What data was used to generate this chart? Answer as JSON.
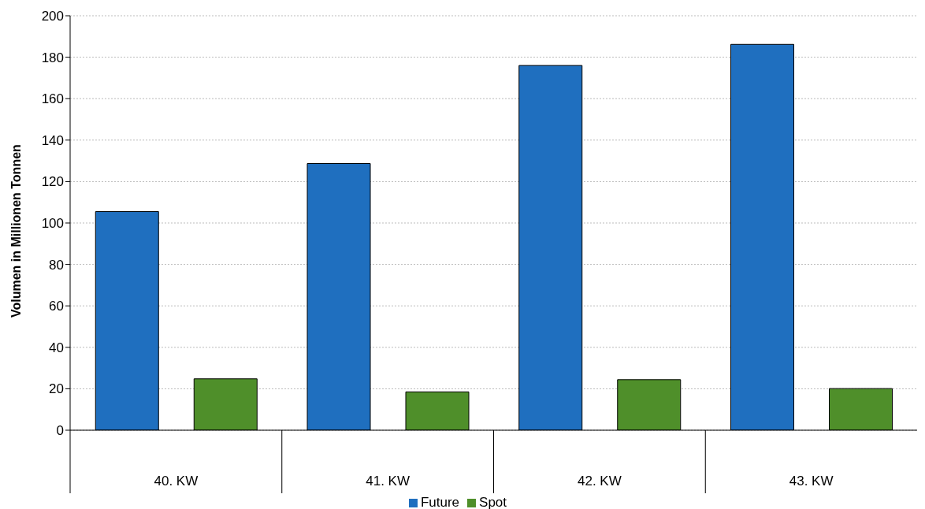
{
  "chart_data": {
    "type": "bar",
    "ylabel": "Volumen in Millionen Tonnen",
    "categories": [
      "40. KW",
      "41. KW",
      "42. KW",
      "43. KW"
    ],
    "series": [
      {
        "name": "Future",
        "color": "#1f6fbf",
        "values": [
          105.5,
          128.7,
          176,
          186.2
        ]
      },
      {
        "name": "Spot",
        "color": "#4f8f2a",
        "values": [
          24.8,
          18.5,
          24.4,
          20.1
        ]
      }
    ],
    "ylim": [
      0,
      200
    ],
    "yticks": [
      0,
      20,
      40,
      60,
      80,
      100,
      120,
      140,
      160,
      180,
      200
    ],
    "grid": "y",
    "legend": "bottom"
  }
}
